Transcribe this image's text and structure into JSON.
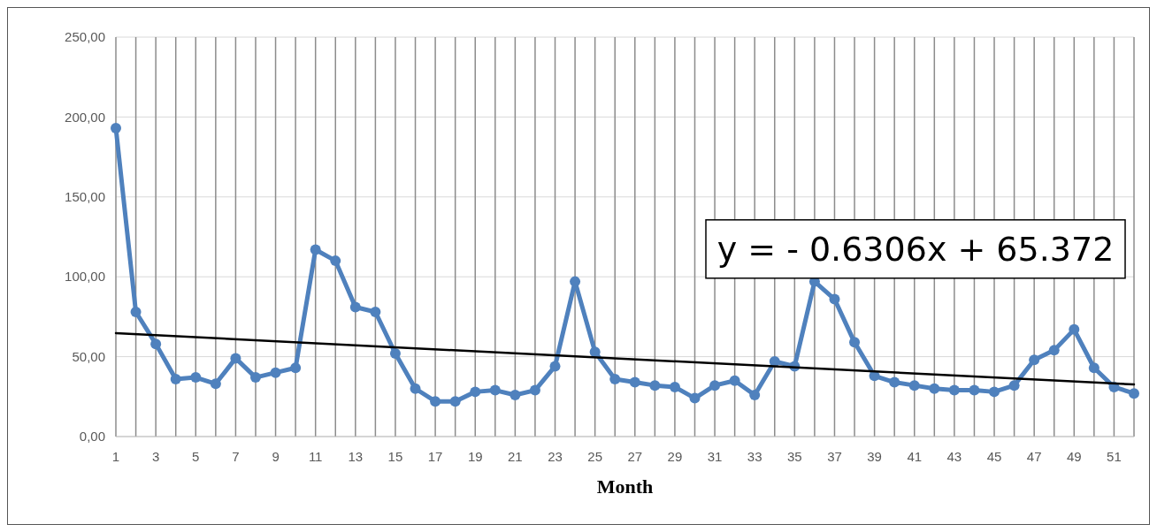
{
  "chart_data": {
    "type": "line",
    "xlabel": "Month",
    "x": [
      1,
      2,
      3,
      4,
      5,
      6,
      7,
      8,
      9,
      10,
      11,
      12,
      13,
      14,
      15,
      16,
      17,
      18,
      19,
      20,
      21,
      22,
      23,
      24,
      25,
      26,
      27,
      28,
      29,
      30,
      31,
      32,
      33,
      34,
      35,
      36,
      37,
      38,
      39,
      40,
      41,
      42,
      43,
      44,
      45,
      46,
      47,
      48,
      49,
      50,
      51,
      52
    ],
    "series": [
      {
        "color": "#4f81bd",
        "marker": "circle",
        "values": [
          193,
          78,
          58,
          36,
          37,
          33,
          49,
          37,
          40,
          43,
          117,
          110,
          81,
          78,
          52,
          30,
          22,
          22,
          28,
          29,
          26,
          29,
          44,
          97,
          53,
          36,
          34,
          32,
          31,
          24,
          32,
          35,
          26,
          47,
          44,
          97,
          86,
          59,
          38,
          34,
          32,
          30,
          29,
          29,
          28,
          32,
          48,
          54,
          67,
          43,
          31,
          27
        ]
      },
      {
        "type": "line",
        "color": "#000000",
        "marker": "none",
        "x": [
          1,
          52
        ],
        "values": [
          64.7,
          32.6
        ]
      }
    ],
    "xlim": [
      1,
      52
    ],
    "xticks": [
      1,
      {
        "value": 2,
        "label": null
      },
      3,
      {
        "value": 4,
        "label": null
      },
      5,
      {
        "value": 6,
        "label": null
      },
      7,
      {
        "value": 8,
        "label": null
      },
      9,
      {
        "value": 10,
        "label": null
      },
      11,
      {
        "value": 12,
        "label": null
      },
      13,
      {
        "value": 14,
        "label": null
      },
      15,
      {
        "value": 16,
        "label": null
      },
      17,
      {
        "value": 18,
        "label": null
      },
      19,
      {
        "value": 20,
        "label": null
      },
      21,
      {
        "value": 22,
        "label": null
      },
      23,
      {
        "value": 24,
        "label": null
      },
      25,
      {
        "value": 26,
        "label": null
      },
      27,
      {
        "value": 28,
        "label": null
      },
      29,
      {
        "value": 30,
        "label": null
      },
      31,
      {
        "value": 32,
        "label": null
      },
      33,
      {
        "value": 34,
        "label": null
      },
      35,
      {
        "value": 36,
        "label": null
      },
      37,
      {
        "value": 38,
        "label": null
      },
      39,
      {
        "value": 40,
        "label": null
      },
      41,
      {
        "value": 42,
        "label": null
      },
      43,
      {
        "value": 44,
        "label": null
      },
      45,
      {
        "value": 46,
        "label": null
      },
      47,
      {
        "value": 48,
        "label": null
      },
      49,
      {
        "value": 50,
        "label": null
      },
      51,
      {
        "value": 52,
        "label": null
      }
    ],
    "ylim": [
      0,
      250
    ],
    "yticks": [
      {
        "value": 0,
        "label": "0,00"
      },
      {
        "value": 50,
        "label": "50,00"
      },
      {
        "value": 100,
        "label": "100,00"
      },
      {
        "value": 150,
        "label": "150,00"
      },
      {
        "value": 200,
        "label": "200,00"
      },
      {
        "value": 250,
        "label": "250,00"
      }
    ],
    "grid": true,
    "line_style": "solid",
    "annotations": [
      "y = - 0.6306x + 65.372"
    ]
  }
}
